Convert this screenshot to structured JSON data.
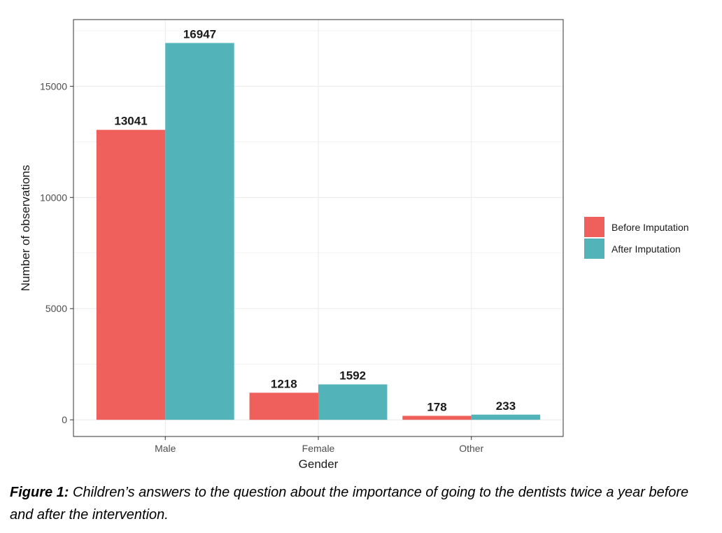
{
  "chart_data": {
    "type": "bar",
    "categories": [
      "Male",
      "Female",
      "Other"
    ],
    "series": [
      {
        "name": "Before Imputation",
        "values": [
          13041,
          1218,
          178
        ],
        "color": "#ef5f5b"
      },
      {
        "name": "After Imputation",
        "values": [
          16947,
          1592,
          233
        ],
        "color": "#52b3b9"
      }
    ],
    "xlabel": "Gender",
    "ylabel": "Number of observations",
    "ylim": [
      -750,
      18000
    ],
    "yticks": [
      0,
      5000,
      10000,
      15000
    ],
    "grid": true,
    "legend": "right"
  },
  "caption": {
    "label": "Figure 1:",
    "text": " Children’s answers to the question about the importance of going to the dentists twice a year before and after the intervention."
  }
}
